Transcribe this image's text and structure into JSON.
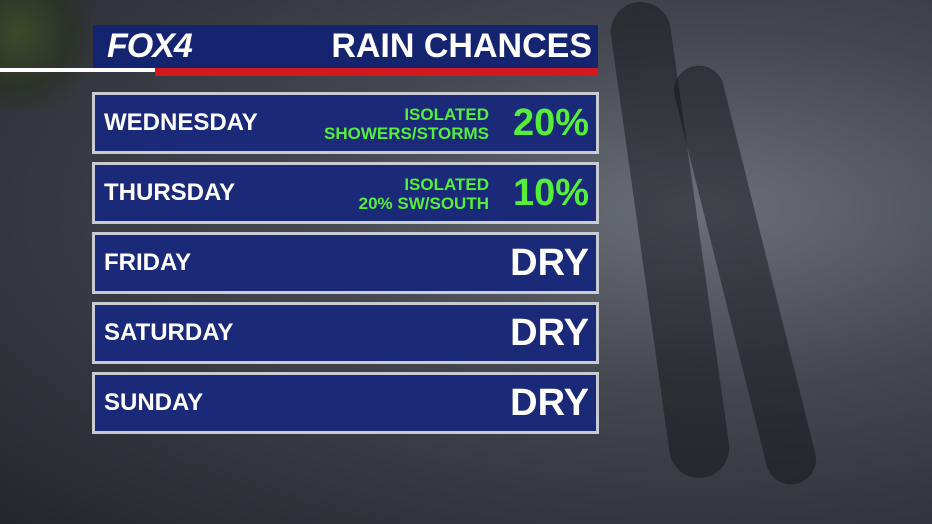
{
  "header": {
    "logo": "FOX4",
    "title": "RAIN CHANCES"
  },
  "rows": [
    {
      "day": "WEDNESDAY",
      "note": [
        "ISOLATED",
        "SHOWERS/STORMS"
      ],
      "chance": "20%"
    },
    {
      "day": "THURSDAY",
      "note": [
        "ISOLATED",
        "20% SW/SOUTH"
      ],
      "chance": "10%"
    },
    {
      "day": "FRIDAY",
      "chance": "DRY"
    },
    {
      "day": "SATURDAY",
      "chance": "DRY"
    },
    {
      "day": "SUNDAY",
      "chance": "DRY"
    }
  ]
}
